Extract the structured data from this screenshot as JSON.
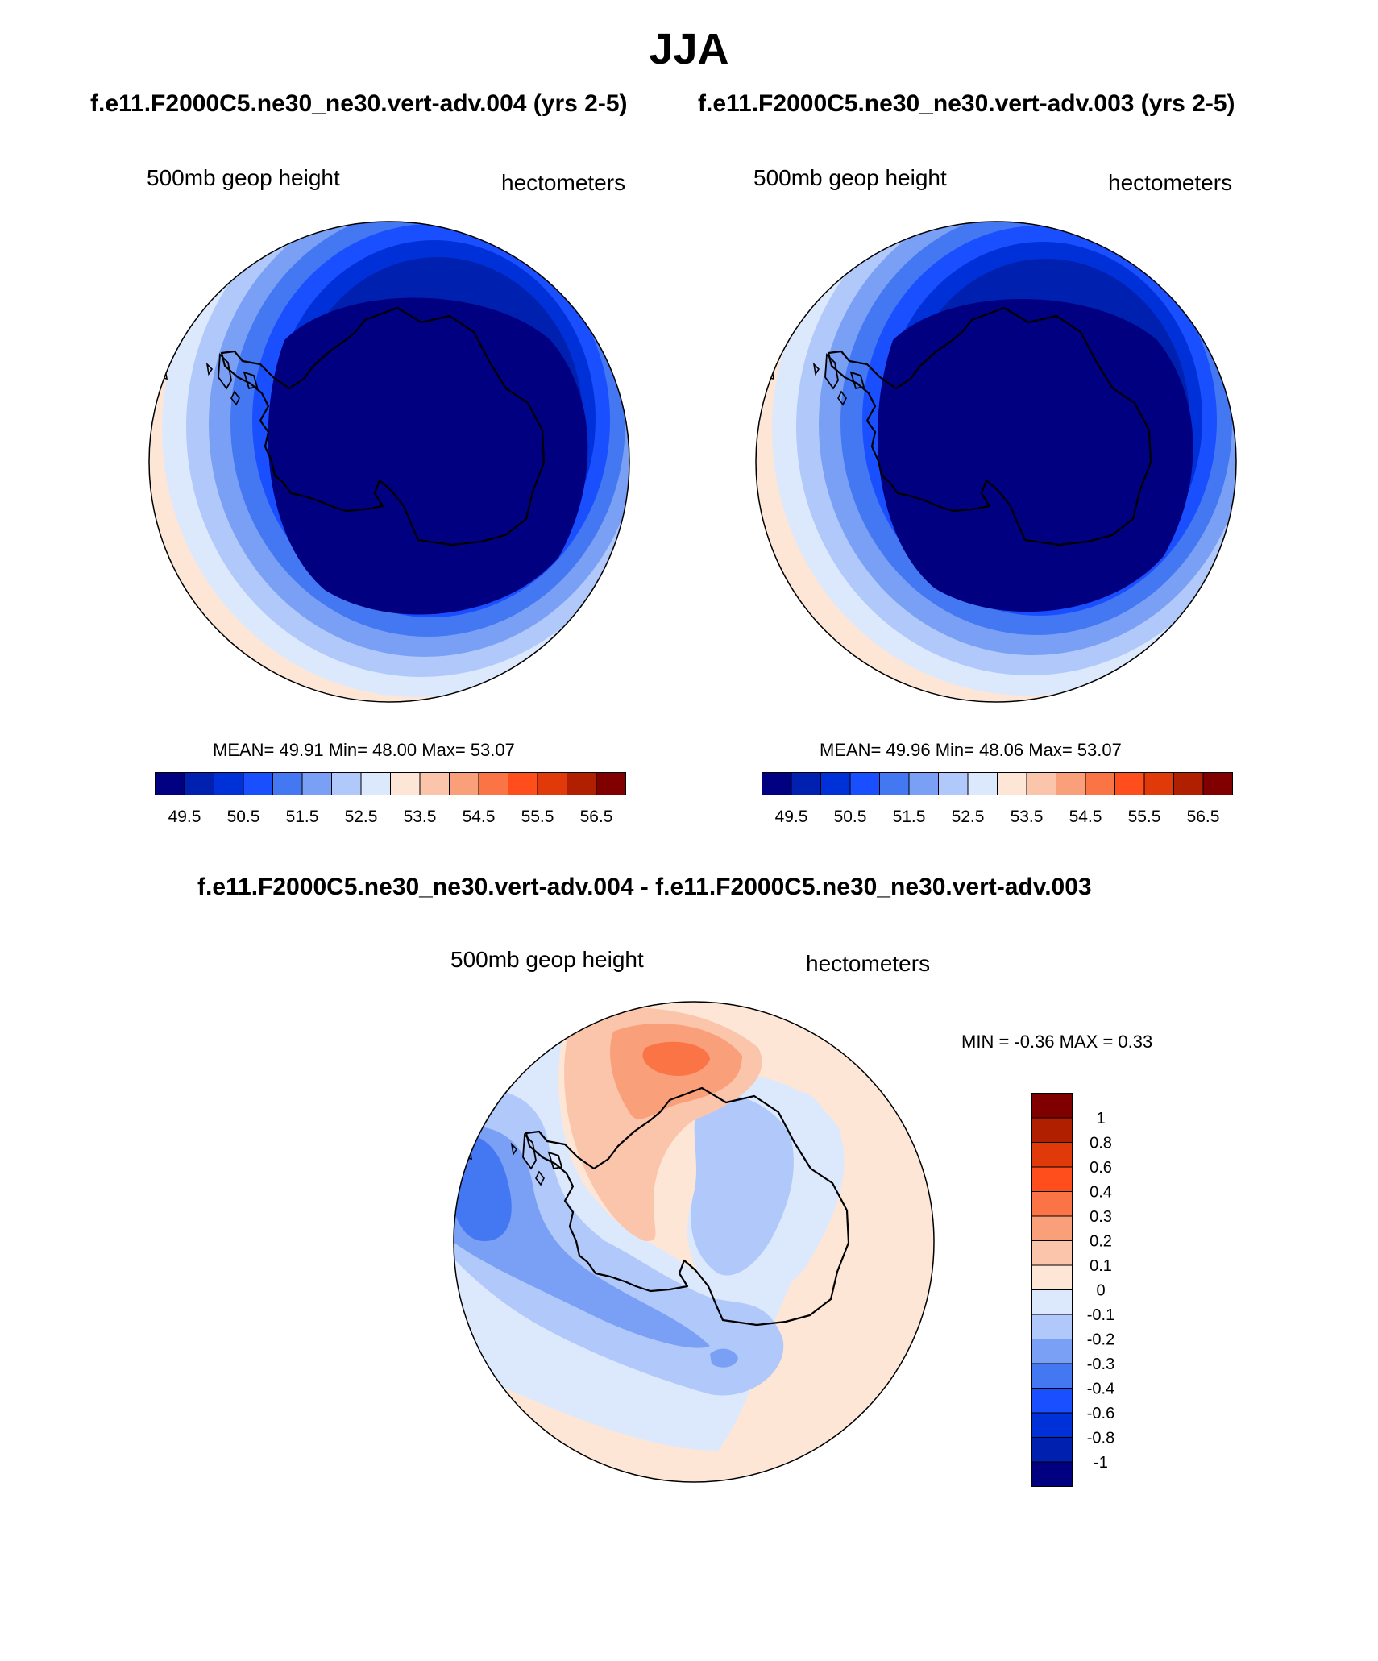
{
  "season_title": "JJA",
  "run_left": "f.e11.F2000C5.ne30_ne30.vert-adv.004 (yrs 2-5)",
  "run_right": "f.e11.F2000C5.ne30_ne30.vert-adv.003 (yrs 2-5)",
  "diff_title": "f.e11.F2000C5.ne30_ne30.vert-adv.004 - f.e11.F2000C5.ne30_ne30.vert-adv.003",
  "panels": [
    {
      "variable": "500mb geop height",
      "units": "hectometers",
      "stats": "MEAN=  49.91  Min=  48.00  Max=  53.07"
    },
    {
      "variable": "500mb geop height",
      "units": "hectometers",
      "stats": "MEAN=  49.96  Min=  48.06  Max=  53.07"
    }
  ],
  "diff_panel": {
    "variable": "500mb geop height",
    "units": "hectometers",
    "stats": "MIN =  -0.36 MAX =   0.33"
  },
  "main_colorbar": {
    "colors": [
      "#000080",
      "#0020b0",
      "#0030d8",
      "#1a4fff",
      "#4477f2",
      "#7aa0f5",
      "#b0c8fa",
      "#dce9fd",
      "#fde6d6",
      "#fbc5ab",
      "#f9a07a",
      "#fb7446",
      "#ff4d1c",
      "#e03a0a",
      "#b02000",
      "#800000"
    ],
    "labels": [
      "49.5",
      "50.5",
      "51.5",
      "52.5",
      "53.5",
      "54.5",
      "55.5",
      "56.5"
    ]
  },
  "diff_colorbar": {
    "colors_top_to_bottom": [
      "#800000",
      "#b02000",
      "#e03a0a",
      "#ff4d1c",
      "#fb7446",
      "#f9a07a",
      "#fbc5ab",
      "#fde6d6",
      "#dce9fd",
      "#b0c8fa",
      "#7aa0f5",
      "#4477f2",
      "#1a4fff",
      "#0030d8",
      "#0020b0",
      "#000080"
    ],
    "labels_top_to_bottom": [
      "1",
      "0.8",
      "0.6",
      "0.4",
      "0.3",
      "0.2",
      "0.1",
      "0",
      "-0.1",
      "-0.2",
      "-0.3",
      "-0.4",
      "-0.6",
      "-0.8",
      "-1"
    ]
  }
}
